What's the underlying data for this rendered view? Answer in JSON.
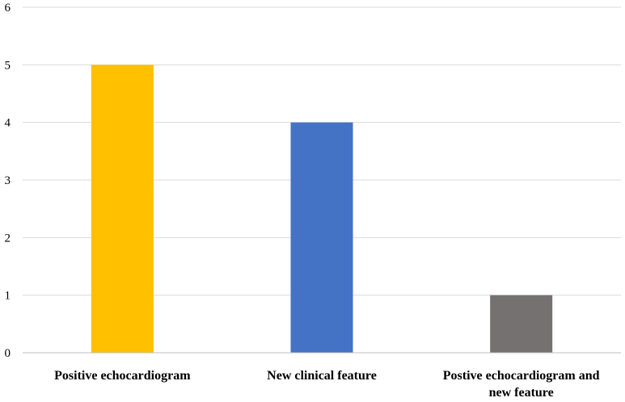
{
  "chart_data": {
    "type": "bar",
    "title": "",
    "xlabel": "",
    "ylabel": "",
    "categories": [
      [
        "Positive echocardiogram"
      ],
      [
        "New clinical feature"
      ],
      [
        "Postive echocardiogram and",
        "new feature"
      ]
    ],
    "values": [
      5,
      4,
      1
    ],
    "colors": [
      "#FFC000",
      "#4472C4",
      "#767171"
    ],
    "ylim": [
      0,
      6
    ],
    "yticks": [
      0,
      1,
      2,
      3,
      4,
      5,
      6
    ],
    "grid": true,
    "legend": "none"
  },
  "colors": {
    "gridline": "#d9d9d9",
    "axis": "#bfbfbf",
    "text": "#000000"
  }
}
